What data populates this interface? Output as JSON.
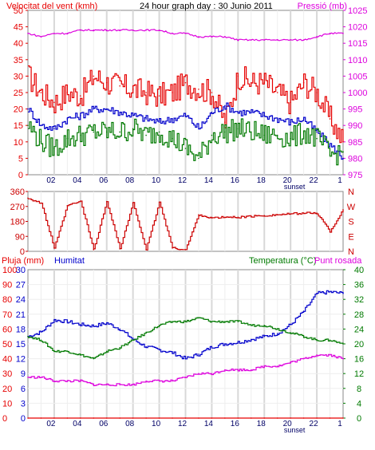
{
  "colors": {
    "frame": "#8a8a8a",
    "grid": "#d8d8d8",
    "red": "#e60000",
    "blue": "#0000cc",
    "green": "#007a00",
    "magenta": "#dd00dd",
    "darkred": "#cc0000"
  },
  "chart_data": [
    {
      "type": "line",
      "title": "24 hour graph day : 30 Junio 2011",
      "ylabel": "Velocitat del vent (kmh)",
      "y2label": "Pressió (mb)",
      "ylim": [
        0,
        50
      ],
      "y2lim": [
        975,
        1025
      ],
      "yticks": [
        "0",
        "5",
        "10",
        "15",
        "20",
        "25",
        "30",
        "35",
        "40",
        "45",
        "50"
      ],
      "y2ticks": [
        "975",
        "980",
        "985",
        "990",
        "995",
        "1000",
        "1005",
        "1010",
        "1015",
        "1020",
        "1025"
      ],
      "xticks": [
        "02",
        "04",
        "06",
        "08",
        "10",
        "12",
        "14",
        "16",
        "18",
        "20",
        "22",
        "1"
      ],
      "xnote": "sunset",
      "x": [
        0,
        1,
        2,
        3,
        4,
        5,
        6,
        7,
        8,
        9,
        10,
        11,
        12,
        13,
        14,
        15,
        16,
        17,
        18,
        19,
        20,
        21,
        22,
        23,
        24
      ],
      "series": [
        {
          "color": "red",
          "values": [
            30,
            25,
            22,
            25,
            24,
            30,
            28,
            27,
            26,
            25,
            24,
            25,
            28,
            26,
            25,
            16,
            30,
            28,
            28,
            25,
            22,
            28,
            25,
            17,
            10
          ]
        },
        {
          "color": "blue",
          "values": [
            20,
            15,
            14,
            17,
            18,
            20,
            20,
            19,
            18,
            17,
            16,
            17,
            18,
            14,
            19,
            21,
            19,
            19,
            18,
            17,
            16,
            17,
            13,
            9,
            5
          ]
        },
        {
          "color": "green",
          "values": [
            15,
            10,
            8,
            11,
            12,
            13,
            13,
            13,
            14,
            12,
            13,
            11,
            8,
            5,
            12,
            13,
            14,
            13,
            12,
            12,
            11,
            13,
            11,
            6,
            7
          ]
        },
        {
          "color": "magenta",
          "axis": "y2",
          "values": [
            1018,
            1017,
            1018,
            1018,
            1019,
            1019,
            1019,
            1019,
            1019,
            1019,
            1019,
            1018,
            1018,
            1017,
            1017,
            1017,
            1016,
            1016,
            1016,
            1016,
            1016,
            1016,
            1017,
            1018,
            1018
          ]
        }
      ]
    },
    {
      "type": "line",
      "ylim": [
        0,
        360
      ],
      "yticks": [
        "0",
        "90",
        "180",
        "270",
        "360"
      ],
      "y2ticks": [
        "N",
        "W",
        "S",
        "E",
        "N"
      ],
      "x": [
        0,
        1,
        2,
        3,
        4,
        5,
        6,
        7,
        8,
        9,
        10,
        11,
        12,
        13,
        14,
        15,
        16,
        17,
        18,
        19,
        20,
        21,
        22,
        23,
        24
      ],
      "series": [
        {
          "color": "darkred",
          "values": [
            320,
            290,
            20,
            275,
            300,
            10,
            300,
            15,
            290,
            10,
            295,
            20,
            10,
            220,
            200,
            205,
            205,
            210,
            215,
            220,
            225,
            230,
            230,
            120,
            250
          ]
        }
      ]
    },
    {
      "type": "line",
      "y1label": "Pluja (mm)",
      "y2label": "Humitat",
      "y3label": "Temperatura (°C)",
      "y4label": "Punt rosada",
      "ylim_pluja": [
        0,
        100
      ],
      "ylim_humitat": [
        0,
        30
      ],
      "ylim_temp": [
        0,
        40
      ],
      "pluja_ticks": [
        "0",
        "10",
        "20",
        "30",
        "40",
        "50",
        "60",
        "70",
        "80",
        "90",
        "100"
      ],
      "humitat_ticks": [
        "0",
        "3",
        "6",
        "9",
        "12",
        "15",
        "18",
        "21",
        "24",
        "27",
        "30"
      ],
      "temp_ticks": [
        "0",
        "4",
        "8",
        "12",
        "16",
        "20",
        "24",
        "28",
        "32",
        "36",
        "40"
      ],
      "xticks": [
        "02",
        "04",
        "06",
        "08",
        "10",
        "12",
        "14",
        "16",
        "18",
        "20",
        "22",
        "1"
      ],
      "xnote": "sunset",
      "x": [
        0,
        1,
        2,
        3,
        4,
        5,
        6,
        7,
        8,
        9,
        10,
        11,
        12,
        13,
        14,
        15,
        16,
        17,
        18,
        19,
        20,
        21,
        22,
        23,
        24
      ],
      "series": [
        {
          "name": "Humitat",
          "color": "blue",
          "values": [
            55,
            58,
            66,
            65,
            63,
            62,
            64,
            60,
            53,
            48,
            46,
            44,
            40,
            43,
            48,
            50,
            51,
            53,
            55,
            57,
            63,
            72,
            84,
            85,
            84
          ]
        },
        {
          "name": "Temperatura (°C)",
          "color": "green",
          "values": [
            22,
            21,
            18,
            18,
            17,
            16,
            18,
            19,
            21,
            23,
            25,
            26,
            26,
            27,
            26,
            26,
            26,
            25,
            25,
            24,
            23,
            22,
            21,
            21,
            20
          ]
        },
        {
          "name": "Punt rosada",
          "color": "magenta",
          "values": [
            11,
            11,
            10,
            10,
            10,
            9,
            9,
            9,
            9,
            10,
            10,
            10,
            11,
            12,
            12,
            13,
            13,
            13,
            14,
            14,
            15,
            16,
            17,
            17,
            16
          ]
        },
        {
          "name": "Pluja (mm)",
          "color": "red",
          "values": [
            0,
            0,
            0,
            0,
            0,
            0,
            0,
            0,
            0,
            0,
            0,
            0,
            0,
            0,
            0,
            0,
            0,
            0,
            0,
            0,
            0,
            0,
            0,
            0,
            0
          ]
        }
      ]
    }
  ]
}
